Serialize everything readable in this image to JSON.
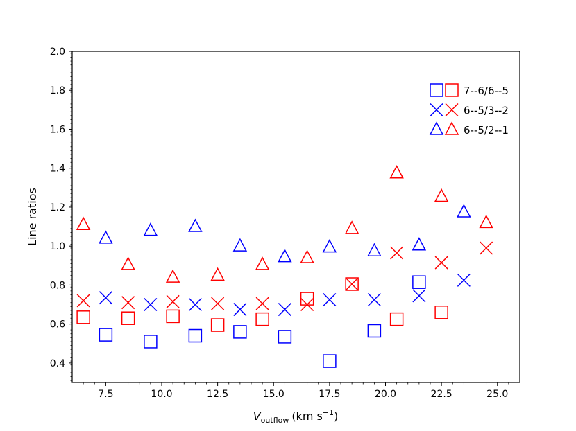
{
  "chart_data": {
    "type": "scatter",
    "title": "",
    "xlabel_main": "V",
    "xlabel_sub": "outflow",
    "xlabel_units": "(km s",
    "xlabel_sup": "−1",
    "xlabel_close": ")",
    "ylabel": "Line ratios",
    "xlim": [
      6.0,
      26.0
    ],
    "ylim": [
      0.3,
      2.0
    ],
    "xticks": [
      "7.5",
      "10.0",
      "12.5",
      "15.0",
      "17.5",
      "20.0",
      "22.5",
      "25.0"
    ],
    "xtick_values": [
      7.5,
      10.0,
      12.5,
      15.0,
      17.5,
      20.0,
      22.5,
      25.0
    ],
    "yticks": [
      "0.4",
      "0.6",
      "0.8",
      "1.0",
      "1.2",
      "1.4",
      "1.6",
      "1.8",
      "2.0"
    ],
    "ytick_values": [
      0.4,
      0.6,
      0.8,
      1.0,
      1.2,
      1.4,
      1.6,
      1.8,
      2.0
    ],
    "grid": false,
    "legend_position": "top-right",
    "colors": {
      "blue": "#0000ff",
      "red": "#ff0000"
    },
    "series": [
      {
        "name": "7--6/6--5",
        "marker": "square",
        "color": "#ff0000",
        "x": [
          6.5,
          8.5,
          10.5,
          12.5,
          14.5,
          16.5,
          18.5,
          20.5,
          22.5
        ],
        "y": [
          0.635,
          0.63,
          0.64,
          0.595,
          0.625,
          0.73,
          0.805,
          0.625,
          0.66
        ]
      },
      {
        "name": "7--6/6--5",
        "marker": "square",
        "color": "#0000ff",
        "x": [
          7.5,
          9.5,
          11.5,
          13.5,
          15.5,
          17.5,
          19.5,
          21.5
        ],
        "y": [
          0.545,
          0.51,
          0.54,
          0.56,
          0.535,
          0.41,
          0.565,
          0.815
        ]
      },
      {
        "name": "6--5/3--2",
        "marker": "x",
        "color": "#ff0000",
        "x": [
          6.5,
          8.5,
          10.5,
          12.5,
          14.5,
          16.5,
          18.5,
          20.5,
          22.5,
          24.5
        ],
        "y": [
          0.72,
          0.71,
          0.715,
          0.705,
          0.705,
          0.7,
          0.805,
          0.965,
          0.915,
          0.99
        ]
      },
      {
        "name": "6--5/3--2",
        "marker": "x",
        "color": "#0000ff",
        "x": [
          7.5,
          9.5,
          11.5,
          13.5,
          15.5,
          17.5,
          19.5,
          21.5,
          23.5
        ],
        "y": [
          0.735,
          0.7,
          0.7,
          0.675,
          0.675,
          0.725,
          0.725,
          0.745,
          0.825
        ]
      },
      {
        "name": "6--5/2--1",
        "marker": "triangle",
        "color": "#ff0000",
        "x": [
          6.5,
          8.5,
          10.5,
          12.5,
          14.5,
          16.5,
          18.5,
          20.5,
          22.5,
          24.5
        ],
        "y": [
          1.11,
          0.905,
          0.84,
          0.85,
          0.905,
          0.94,
          1.09,
          1.375,
          1.255,
          1.12
        ]
      },
      {
        "name": "6--5/2--1",
        "marker": "triangle",
        "color": "#0000ff",
        "x": [
          7.5,
          9.5,
          11.5,
          13.5,
          15.5,
          17.5,
          19.5,
          21.5,
          23.5
        ],
        "y": [
          1.04,
          1.08,
          1.1,
          1.0,
          0.945,
          0.995,
          0.975,
          1.005,
          1.175
        ]
      }
    ],
    "legend": [
      {
        "label": "7--6/6--5",
        "marker": "square"
      },
      {
        "label": "6--5/3--2",
        "marker": "x"
      },
      {
        "label": "6--5/2--1",
        "marker": "triangle"
      }
    ]
  }
}
